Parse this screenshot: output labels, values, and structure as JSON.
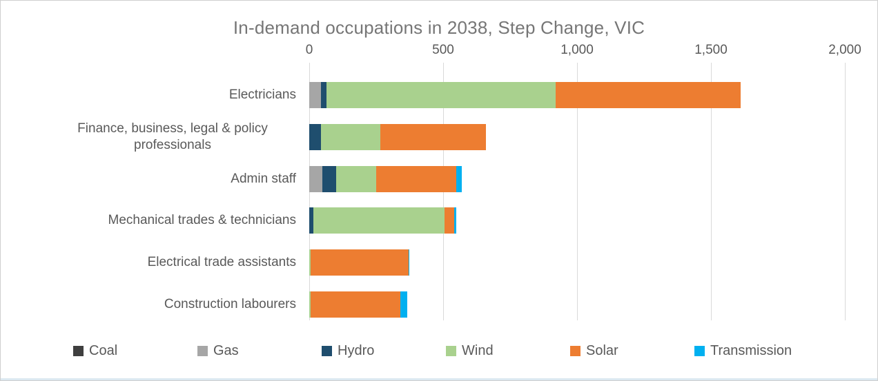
{
  "chart_data": {
    "type": "bar",
    "orientation": "horizontal-stacked",
    "title": "In-demand occupations in 2038, Step Change, VIC",
    "categories": [
      "Electricians",
      "Finance, business, legal & policy professionals",
      "Admin staff",
      "Mechanical trades & technicians",
      "Electrical trade assistants",
      "Construction labourers"
    ],
    "series": [
      {
        "name": "Coal",
        "color": "#3f3f3f",
        "values": [
          0,
          0,
          0,
          0,
          0,
          0
        ]
      },
      {
        "name": "Gas",
        "color": "#a6a6a6",
        "values": [
          45,
          0,
          50,
          0,
          0,
          0
        ]
      },
      {
        "name": "Hydro",
        "color": "#1f4e6e",
        "values": [
          20,
          45,
          50,
          15,
          0,
          0
        ]
      },
      {
        "name": "Wind",
        "color": "#a9d18e",
        "values": [
          855,
          220,
          150,
          490,
          5,
          5
        ]
      },
      {
        "name": "Solar",
        "color": "#ed7d31",
        "values": [
          690,
          395,
          300,
          35,
          365,
          335
        ]
      },
      {
        "name": "Transmission",
        "color": "#00b0f0",
        "values": [
          0,
          0,
          20,
          10,
          5,
          25
        ]
      }
    ],
    "totals": [
      1610,
      660,
      570,
      550,
      375,
      365
    ],
    "xlim": [
      0,
      2000
    ],
    "xticks": [
      {
        "value": 0,
        "label": "0"
      },
      {
        "value": 500,
        "label": "500"
      },
      {
        "value": 1000,
        "label": "1,000"
      },
      {
        "value": 1500,
        "label": "1,500"
      },
      {
        "value": 2000,
        "label": "2,000"
      }
    ],
    "grid": "vertical",
    "legend_position": "bottom"
  },
  "style_colors": {
    "title_text": "#767676",
    "axis_text": "#595959",
    "gridline": "#d9d9d9",
    "frame_border": "#cfcfcf",
    "bottom_strip": "#dce9f1"
  }
}
